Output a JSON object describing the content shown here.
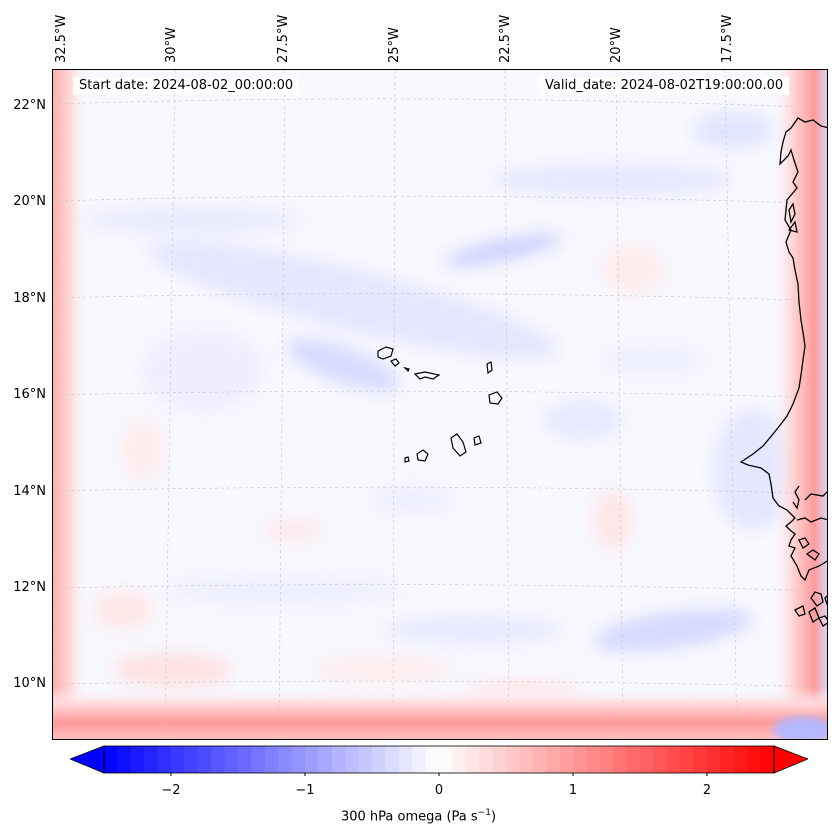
{
  "map": {
    "region": "Cape Verde / West African coast",
    "start_date_label": "Start date: 2024-08-02_00:00:00",
    "valid_date_label": "Valid_date: 2024-08-02T19:00:00.00",
    "gridlines": true,
    "longitude_labels": [
      "32.5°W",
      "30°W",
      "27.5°W",
      "25°W",
      "22.5°W",
      "20°W",
      "17.5°W"
    ],
    "latitude_labels": [
      "22°N",
      "20°N",
      "18°N",
      "16°N",
      "14°N",
      "12°N",
      "10°N"
    ],
    "coastline_color": "#000000",
    "field_colormap": "bwr"
  },
  "colorbar": {
    "label": "300 hPa omega (Pa s",
    "label_exp": "−1",
    "label_close": ")",
    "ticks": [
      "−2",
      "−1",
      "0",
      "1",
      "2"
    ],
    "tick_values": [
      -2,
      -1,
      0,
      1,
      2
    ],
    "range": [
      -2.5,
      2.5
    ],
    "extend": "both",
    "low_color": "#0000ff",
    "mid_color": "#ffffff",
    "high_color": "#ff0000"
  }
}
